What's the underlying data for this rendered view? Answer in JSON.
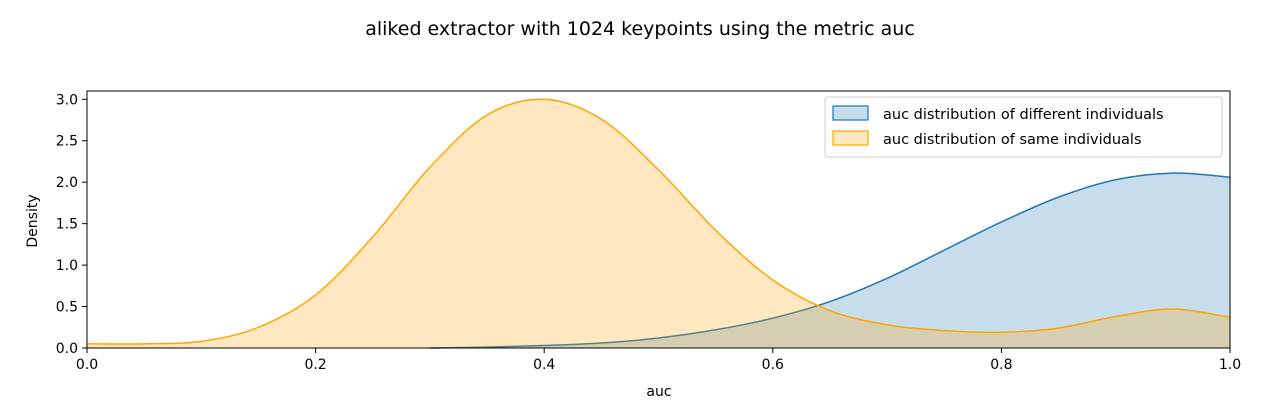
{
  "chart_data": {
    "type": "area",
    "title": "aliked extractor with 1024 keypoints using the metric auc",
    "xlabel": "auc",
    "ylabel": "Density",
    "xlim": [
      0.0,
      1.0
    ],
    "ylim": [
      0.0,
      3.1
    ],
    "xticks": [
      0.0,
      0.2,
      0.4,
      0.6,
      0.8,
      1.0
    ],
    "xtick_labels": [
      "0.0",
      "0.2",
      "0.4",
      "0.6",
      "0.8",
      "1.0"
    ],
    "yticks": [
      0.0,
      0.5,
      1.0,
      1.5,
      2.0,
      2.5,
      3.0
    ],
    "ytick_labels": [
      "0.0",
      "0.5",
      "1.0",
      "1.5",
      "2.0",
      "2.5",
      "3.0"
    ],
    "grid": false,
    "legend_position": "top-right",
    "series": [
      {
        "name": "auc distribution of different individuals",
        "line_color": "#1f77b4",
        "fill_color": "#1f77b4",
        "x": [
          0.3,
          0.35,
          0.4,
          0.45,
          0.5,
          0.55,
          0.6,
          0.65,
          0.7,
          0.75,
          0.8,
          0.85,
          0.9,
          0.95,
          1.0
        ],
        "y": [
          0.0,
          0.01,
          0.03,
          0.06,
          0.12,
          0.22,
          0.36,
          0.56,
          0.84,
          1.18,
          1.52,
          1.82,
          2.03,
          2.11,
          2.06
        ]
      },
      {
        "name": "auc distribution of same individuals",
        "line_color": "#ffa500",
        "fill_color": "#ffa500",
        "x": [
          0.0,
          0.05,
          0.1,
          0.15,
          0.2,
          0.25,
          0.3,
          0.35,
          0.4,
          0.45,
          0.5,
          0.55,
          0.6,
          0.65,
          0.7,
          0.75,
          0.8,
          0.85,
          0.9,
          0.95,
          1.0
        ],
        "y": [
          0.05,
          0.05,
          0.08,
          0.25,
          0.64,
          1.34,
          2.18,
          2.81,
          3.0,
          2.76,
          2.15,
          1.42,
          0.82,
          0.45,
          0.28,
          0.21,
          0.19,
          0.24,
          0.38,
          0.47,
          0.37
        ]
      }
    ]
  }
}
